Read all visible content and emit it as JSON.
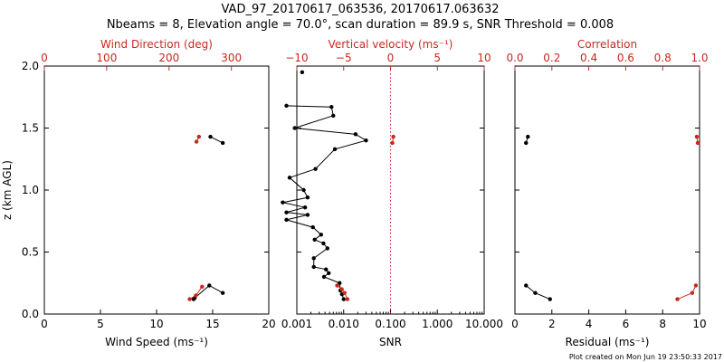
{
  "figure": {
    "title_line1": "VAD_97_20170617_063536, 20170617.063632",
    "title_line2": "Nbeams = 8, Elevation angle = 70.0°, scan duration = 89.9 s, SNR Threshold = 0.008",
    "footer": "Plot created on Mon Jun 19 23:50:33 2017",
    "colors": {
      "black": "#000000",
      "red": "#c8281e"
    }
  },
  "chart_data": [
    {
      "type": "line",
      "panel": "wind",
      "ylabel": "z (km AGL)",
      "ylim": [
        0,
        2.0
      ],
      "yticks": [
        "0.0",
        "0.5",
        "1.0",
        "1.5",
        "2.0"
      ],
      "bottom_axis": {
        "label": "Wind Speed (ms⁻¹)",
        "range": [
          0,
          20
        ],
        "ticks": [
          "0",
          "5",
          "10",
          "15",
          "20"
        ]
      },
      "top_axis": {
        "label": "Wind Direction (deg)",
        "range": [
          0,
          360
        ],
        "ticks": [
          "0",
          "100",
          "200",
          "300"
        ]
      },
      "series": [
        {
          "axis": "bottom",
          "color": "black",
          "segments": [
            [
              [
                14.8,
                1.43
              ],
              [
                15.9,
                1.38
              ]
            ],
            [
              [
                13.3,
                0.12
              ],
              [
                13.4,
                0.13
              ],
              [
                14.7,
                0.23
              ],
              [
                15.9,
                0.17
              ]
            ]
          ]
        },
        {
          "axis": "top",
          "color": "red",
          "segments": [
            [
              [
                248,
                1.43
              ],
              [
                244,
                1.39
              ]
            ],
            [
              [
                233,
                0.12
              ],
              [
                243,
                0.15
              ],
              [
                253,
                0.22
              ]
            ]
          ]
        }
      ]
    },
    {
      "type": "line",
      "panel": "snr",
      "ylim": [
        0,
        2.0
      ],
      "bottom_axis": {
        "label": "SNR",
        "scale": "log",
        "range": [
          0.001,
          10
        ],
        "ticks": [
          "0.001",
          "0.010",
          "0.100",
          "1.000",
          "10.000"
        ]
      },
      "top_axis": {
        "label": "Vertical velocity (ms⁻¹)",
        "range": [
          -10,
          10
        ],
        "ticks": [
          "−10",
          "−5",
          "0",
          "5",
          "10"
        ]
      },
      "reference_line": {
        "axis": "top",
        "value": 0,
        "style": "dotted",
        "color": "red"
      },
      "series": [
        {
          "axis": "bottom",
          "color": "black",
          "segments": [
            [
              [
                0.0013,
                1.95
              ]
            ],
            [
              [
                0.0006,
                1.68
              ],
              [
                0.0055,
                1.67
              ],
              [
                0.006,
                1.6
              ],
              [
                0.0009,
                1.5
              ],
              [
                0.018,
                1.45
              ],
              [
                0.03,
                1.4
              ],
              [
                0.0065,
                1.33
              ],
              [
                0.0025,
                1.17
              ],
              [
                0.0007,
                1.1
              ],
              [
                0.0014,
                1.0
              ],
              [
                0.0017,
                0.94
              ],
              [
                0.0005,
                0.9
              ],
              [
                0.0015,
                0.86
              ],
              [
                0.0006,
                0.82
              ],
              [
                0.0017,
                0.8
              ],
              [
                0.0006,
                0.76
              ],
              [
                0.0022,
                0.7
              ],
              [
                0.0033,
                0.64
              ],
              [
                0.0024,
                0.6
              ],
              [
                0.0037,
                0.57
              ],
              [
                0.0045,
                0.53
              ],
              [
                0.0023,
                0.45
              ],
              [
                0.0023,
                0.38
              ],
              [
                0.0042,
                0.36
              ],
              [
                0.0048,
                0.33
              ],
              [
                0.0038,
                0.3
              ],
              [
                0.0082,
                0.25
              ],
              [
                0.0085,
                0.19
              ],
              [
                0.0092,
                0.16
              ],
              [
                0.01,
                0.12
              ]
            ]
          ]
        },
        {
          "axis": "top",
          "color": "red",
          "segments": [
            [
              [
                0.3,
                1.43
              ],
              [
                0.2,
                1.38
              ]
            ],
            [
              [
                -5.7,
                0.23
              ],
              [
                -5.2,
                0.2
              ],
              [
                -4.9,
                0.17
              ],
              [
                -4.6,
                0.12
              ]
            ]
          ]
        }
      ]
    },
    {
      "type": "line",
      "panel": "residual",
      "ylim": [
        0,
        2.0
      ],
      "bottom_axis": {
        "label": "Residual (ms⁻¹)",
        "range": [
          0,
          10
        ],
        "ticks": [
          "0",
          "2",
          "4",
          "6",
          "8",
          "10"
        ]
      },
      "top_axis": {
        "label": "Correlation",
        "range": [
          0,
          1.0
        ],
        "ticks": [
          "0.0",
          "0.2",
          "0.4",
          "0.6",
          "0.8",
          "1.0"
        ]
      },
      "series": [
        {
          "axis": "bottom",
          "color": "black",
          "segments": [
            [
              [
                0.7,
                1.43
              ],
              [
                0.6,
                1.38
              ]
            ],
            [
              [
                0.6,
                0.23
              ],
              [
                1.1,
                0.17
              ],
              [
                1.9,
                0.12
              ]
            ]
          ]
        },
        {
          "axis": "top",
          "color": "red",
          "segments": [
            [
              [
                0.985,
                1.43
              ],
              [
                0.99,
                1.38
              ]
            ],
            [
              [
                0.98,
                0.23
              ],
              [
                0.96,
                0.17
              ],
              [
                0.88,
                0.12
              ]
            ]
          ]
        }
      ]
    }
  ]
}
